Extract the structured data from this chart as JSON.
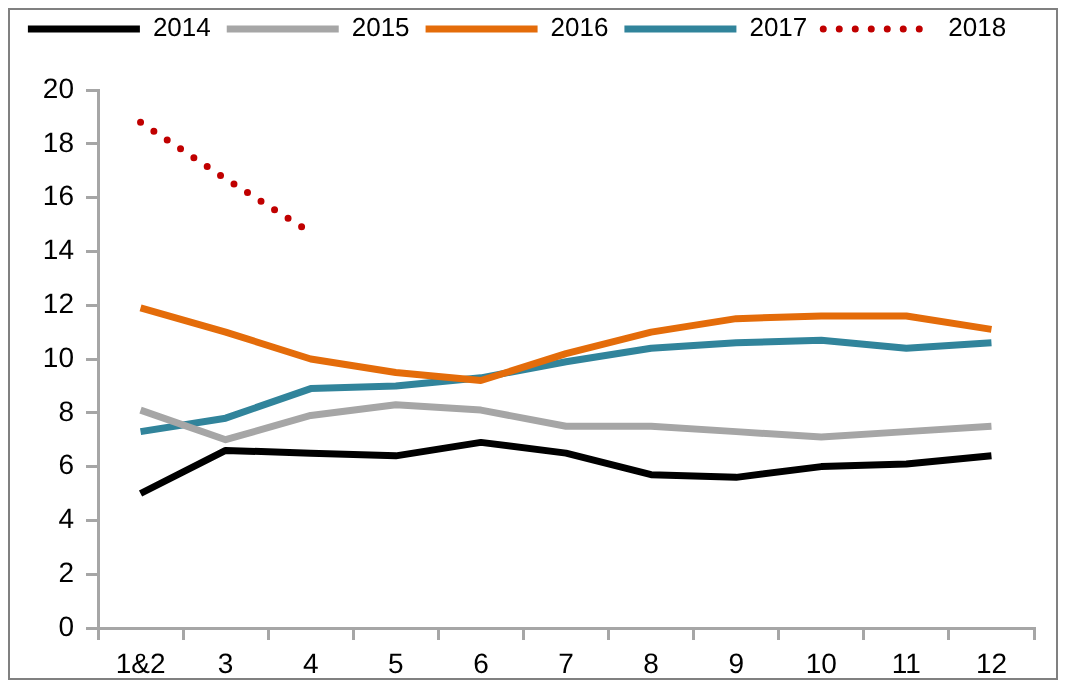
{
  "chart_data": {
    "type": "line",
    "categories": [
      "1&2",
      "3",
      "4",
      "5",
      "6",
      "7",
      "8",
      "9",
      "10",
      "11",
      "12"
    ],
    "series": [
      {
        "name": "2014",
        "color": "#000000",
        "values": [
          5.0,
          6.6,
          6.5,
          6.4,
          6.9,
          6.5,
          5.7,
          5.6,
          6.0,
          6.1,
          6.4
        ]
      },
      {
        "name": "2015",
        "color": "#a6a6a6",
        "values": [
          8.1,
          7.0,
          7.9,
          8.3,
          8.1,
          7.5,
          7.5,
          7.3,
          7.1,
          7.3,
          7.5
        ]
      },
      {
        "name": "2016",
        "color": "#e46c0a",
        "values": [
          11.9,
          11.0,
          10.0,
          9.5,
          9.2,
          10.2,
          11.0,
          11.5,
          11.6,
          11.6,
          11.1
        ]
      },
      {
        "name": "2017",
        "color": "#31849b",
        "values": [
          7.3,
          7.8,
          8.9,
          9.0,
          9.3,
          9.9,
          10.4,
          10.6,
          10.7,
          10.4,
          10.6
        ]
      },
      {
        "name": "2018",
        "color": "#c00000",
        "line_style": "dotted",
        "values": [
          18.8,
          16.7,
          14.7,
          null,
          null,
          null,
          null,
          null,
          null,
          null,
          null
        ]
      }
    ],
    "ylim": [
      0,
      20
    ],
    "yticks": [
      0,
      2,
      4,
      6,
      8,
      10,
      12,
      14,
      16,
      18,
      20
    ],
    "grid": false,
    "legend": "top",
    "marker": "none"
  }
}
